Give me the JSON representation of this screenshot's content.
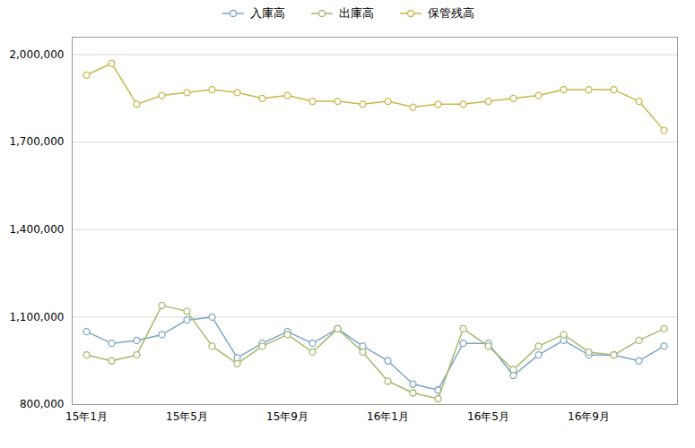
{
  "chart_data": {
    "type": "line",
    "categories": [
      "15年1月",
      null,
      null,
      null,
      "15年5月",
      null,
      null,
      null,
      "15年9月",
      null,
      null,
      null,
      "16年1月",
      null,
      null,
      null,
      "16年5月",
      null,
      null,
      null,
      "16年9月",
      null,
      null,
      null
    ],
    "series": [
      {
        "name": "入庫高",
        "color": "#7ca5c5",
        "values": [
          1050000,
          1010000,
          1020000,
          1040000,
          1090000,
          1100000,
          960000,
          1010000,
          1050000,
          1010000,
          1060000,
          1000000,
          950000,
          870000,
          850000,
          1010000,
          1010000,
          900000,
          970000,
          1020000,
          970000,
          970000,
          950000,
          1000000
        ]
      },
      {
        "name": "出庫高",
        "color": "#a5b96e",
        "values": [
          970000,
          950000,
          970000,
          1140000,
          1120000,
          1000000,
          940000,
          1000000,
          1040000,
          980000,
          1060000,
          980000,
          880000,
          840000,
          820000,
          1060000,
          1000000,
          920000,
          1000000,
          1040000,
          980000,
          970000,
          1020000,
          1060000
        ]
      },
      {
        "name": "保管残高",
        "color": "#c8b84a",
        "values": [
          1930000,
          1970000,
          1830000,
          1860000,
          1870000,
          1880000,
          1870000,
          1850000,
          1860000,
          1840000,
          1840000,
          1830000,
          1840000,
          1820000,
          1830000,
          1830000,
          1840000,
          1850000,
          1860000,
          1880000,
          1880000,
          1880000,
          1840000,
          1740000
        ]
      }
    ],
    "ylim": [
      800000,
      2060000
    ],
    "yticks": [
      {
        "value": 800000,
        "label": "800,000"
      },
      {
        "value": 1100000,
        "label": "1,100,000"
      },
      {
        "value": 1400000,
        "label": "1,400,000"
      },
      {
        "value": 1700000,
        "label": "1,700,000"
      },
      {
        "value": 2000000,
        "label": "2,000,000"
      }
    ],
    "grid": true,
    "legend": "top",
    "marker": "circle"
  }
}
